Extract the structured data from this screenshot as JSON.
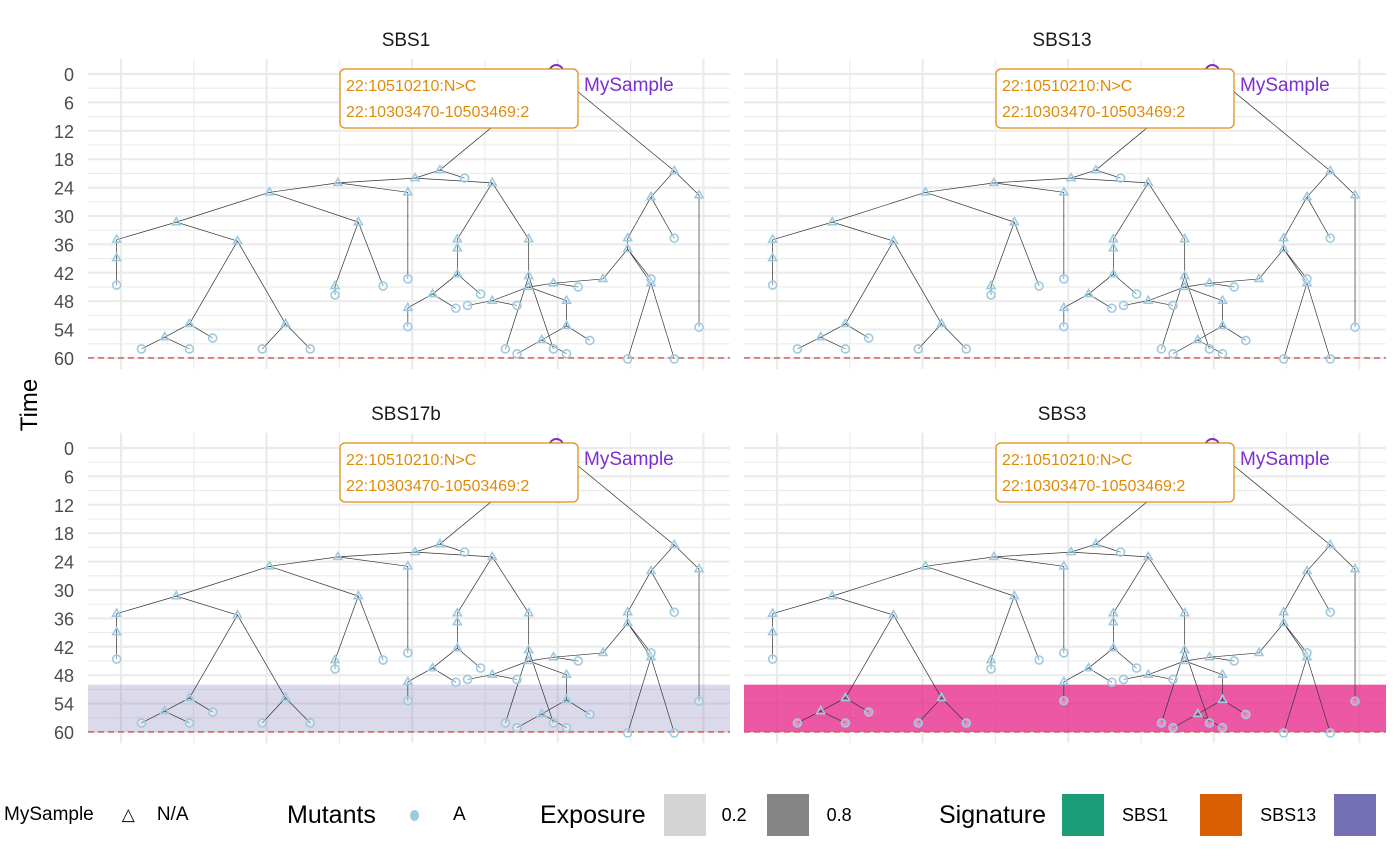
{
  "chart_data": {
    "type": "tree",
    "ylabel": "Time",
    "y_ticks": [
      0,
      6,
      12,
      18,
      24,
      30,
      36,
      42,
      48,
      54,
      60
    ],
    "ylim": [
      -1.5,
      61.5
    ],
    "xlim": [
      -0.22,
      4.05
    ],
    "cutoff_time": 60,
    "panels": [
      {
        "title": "SBS1",
        "band": null
      },
      {
        "title": "SBS13",
        "band": null
      },
      {
        "title": "SBS17b",
        "band": {
          "signature": "SBS17b",
          "exposure": 0.2,
          "from": 50,
          "to": 60
        }
      },
      {
        "title": "SBS3",
        "band": {
          "signature": "SBS3",
          "exposure": 0.8,
          "from": 50,
          "to": 60
        }
      }
    ],
    "root_label": "MySample",
    "callout": [
      "22:10510210:N>C",
      "22:10303470-10503469:2"
    ],
    "nodes": [
      [
        "r",
        null,
        2.99,
        0,
        "root"
      ],
      [
        "A",
        "r",
        2.19,
        20.3,
        "tri"
      ],
      [
        "R1",
        "r",
        3.8,
        20.5,
        "tri"
      ],
      [
        "B",
        "A",
        2.02,
        22,
        "tri"
      ],
      [
        "a1",
        "A",
        2.36,
        22,
        "circ"
      ],
      [
        "C",
        "B",
        1.49,
        23,
        "tri"
      ],
      [
        "D",
        "B",
        2.55,
        23,
        "tri"
      ],
      [
        "E",
        "C",
        1.02,
        25,
        "tri"
      ],
      [
        "F",
        "C",
        1.97,
        25,
        "tri"
      ],
      [
        "f1",
        "F",
        1.97,
        43.3,
        "circ"
      ],
      [
        "G",
        "E",
        0.38,
        31.3,
        "tri"
      ],
      [
        "H",
        "E",
        1.63,
        31.3,
        "tri"
      ],
      [
        "I",
        "G",
        -0.03,
        35,
        "tri"
      ],
      [
        "J",
        "G",
        0.8,
        35.3,
        "tri"
      ],
      [
        "I2",
        "I",
        -0.03,
        38.9,
        "tri"
      ],
      [
        "i1",
        "I2",
        -0.03,
        44.6,
        "circ"
      ],
      [
        "K",
        "J",
        0.47,
        52.8,
        "tri"
      ],
      [
        "L",
        "J",
        1.13,
        52.8,
        "tri"
      ],
      [
        "K1",
        "K",
        0.3,
        55.6,
        "tri"
      ],
      [
        "k1",
        "K",
        0.63,
        55.8,
        "circ"
      ],
      [
        "k2",
        "K1",
        0.14,
        58.1,
        "circ"
      ],
      [
        "k3",
        "K1",
        0.47,
        58.1,
        "circ"
      ],
      [
        "l1",
        "L",
        0.97,
        58.1,
        "circ"
      ],
      [
        "l2",
        "L",
        1.3,
        58.1,
        "circ"
      ],
      [
        "H1",
        "H",
        1.47,
        44.8,
        "tri"
      ],
      [
        "h1",
        "H1",
        1.47,
        46.7,
        "circ"
      ],
      [
        "h2",
        "H",
        1.8,
        44.8,
        "circ"
      ],
      [
        "M",
        "D",
        2.31,
        34.9,
        "tri"
      ],
      [
        "N",
        "D",
        2.8,
        34.9,
        "tri"
      ],
      [
        "M1",
        "M",
        2.31,
        36.8,
        "tri"
      ],
      [
        "M2",
        "M1",
        2.31,
        42.3,
        "tri"
      ],
      [
        "M3",
        "M2",
        2.14,
        46.5,
        "tri"
      ],
      [
        "m1",
        "M2",
        2.47,
        46.5,
        "circ"
      ],
      [
        "M4",
        "M3",
        1.97,
        49.4,
        "tri"
      ],
      [
        "m2",
        "M4",
        1.97,
        53.4,
        "circ"
      ],
      [
        "m3",
        "M3",
        2.3,
        49.5,
        "circ"
      ],
      [
        "N1",
        "N",
        2.8,
        42.7,
        "tri"
      ],
      [
        "n1",
        "N1",
        2.64,
        58.1,
        "circ"
      ],
      [
        "n2",
        "N1",
        2.97,
        58.1,
        "circ"
      ],
      [
        "R2",
        "R1",
        3.64,
        26,
        "tri"
      ],
      [
        "R3",
        "R1",
        3.97,
        25.6,
        "tri"
      ],
      [
        "r3",
        "R3",
        3.97,
        53.5,
        "circ"
      ],
      [
        "r2",
        "R2",
        3.8,
        34.7,
        "circ"
      ],
      [
        "R4",
        "R2",
        3.48,
        34.7,
        "tri"
      ],
      [
        "R5",
        "R4",
        3.48,
        37,
        "tri"
      ],
      [
        "O",
        "R5",
        3.31,
        43.3,
        "tri"
      ],
      [
        "P",
        "R5",
        3.64,
        44.2,
        "tri"
      ],
      [
        "p0",
        "R5",
        3.64,
        43.3,
        "circ"
      ],
      [
        "p1",
        "P",
        3.48,
        60.2,
        "circ"
      ],
      [
        "p2",
        "P",
        3.8,
        60.2,
        "circ"
      ],
      [
        "Q",
        "O",
        2.97,
        44.2,
        "tri"
      ],
      [
        "q1",
        "Q",
        3.14,
        45,
        "circ"
      ],
      [
        "N2",
        "Q",
        2.8,
        45,
        "tri"
      ],
      [
        "S",
        "N2",
        2.55,
        47.9,
        "tri"
      ],
      [
        "s1",
        "S",
        2.38,
        48.9,
        "circ"
      ],
      [
        "s2",
        "S",
        2.72,
        48.9,
        "circ"
      ],
      [
        "T",
        "N2",
        3.06,
        47.9,
        "tri"
      ],
      [
        "T1",
        "T",
        3.06,
        53.2,
        "tri"
      ],
      [
        "t1",
        "T1",
        3.22,
        56.3,
        "circ"
      ],
      [
        "T2",
        "T1",
        2.89,
        56.2,
        "tri"
      ],
      [
        "t2",
        "T2",
        2.72,
        59.1,
        "circ"
      ],
      [
        "t3",
        "T2",
        3.06,
        59.1,
        "circ"
      ]
    ],
    "colors": {
      "node": "#9ecae1",
      "root": "#7b2fd0",
      "callout": "#e08a0b",
      "cutoff": "#d9534f",
      "edge": "#333333"
    }
  },
  "legend": {
    "sample_title": "MySample",
    "sample_item": "N/A",
    "mutants_title": "Mutants",
    "mutants_item": "A",
    "exposure_title": "Exposure",
    "exposure_items": [
      {
        "label": "0.2",
        "color": "#d4d4d4"
      },
      {
        "label": "0.8",
        "color": "#858585"
      }
    ],
    "signature_title": "Signature",
    "signature_items": [
      {
        "label": "SBS1",
        "color": "#1b9e77"
      },
      {
        "label": "SBS13",
        "color": "#d95f02"
      },
      {
        "label": "",
        "color": "#7570b3"
      }
    ]
  },
  "signature_colors": {
    "SBS1": "#1b9e77",
    "SBS13": "#d95f02",
    "SBS17b": "#7570b3",
    "SBS3": "#e7298a"
  }
}
